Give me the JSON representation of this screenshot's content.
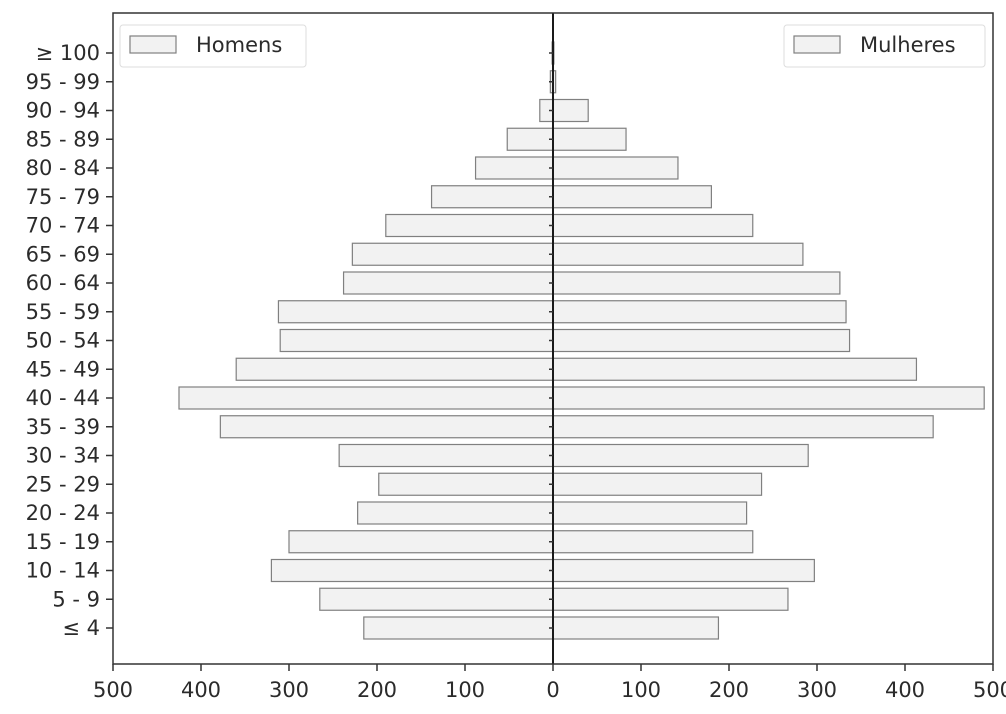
{
  "chart_data": {
    "type": "bar",
    "orientation": "horizontal",
    "categories": [
      "≤ 4",
      "5 - 9",
      "10 - 14",
      "15 - 19",
      "20 - 24",
      "25 - 29",
      "30 - 34",
      "35 - 39",
      "40 - 44",
      "45 - 49",
      "50 - 54",
      "55 - 59",
      "60 - 64",
      "65 - 69",
      "70 - 74",
      "75 - 79",
      "80 - 84",
      "85 - 89",
      "90 - 94",
      "95 - 99",
      "≥ 100"
    ],
    "series": [
      {
        "name": "Homens",
        "values": [
          215,
          265,
          320,
          300,
          222,
          198,
          243,
          378,
          425,
          360,
          310,
          312,
          238,
          228,
          190,
          138,
          88,
          52,
          15,
          3,
          1
        ]
      },
      {
        "name": "Mulheres",
        "values": [
          188,
          267,
          297,
          227,
          220,
          237,
          290,
          432,
          490,
          413,
          337,
          333,
          326,
          284,
          227,
          180,
          142,
          83,
          40,
          3,
          1
        ]
      }
    ],
    "xticks": [
      "500",
      "400",
      "300",
      "200",
      "100",
      "0",
      "100",
      "200",
      "300",
      "400",
      "500"
    ],
    "xlim": [
      -500,
      500
    ],
    "legend": {
      "left": "upper-left",
      "right": "upper-right"
    },
    "grid": false,
    "colors": {
      "bar_fill": "#f2f2f2",
      "bar_edge": "#808080",
      "axis": "#333333",
      "center_line": "#1a1a1a"
    }
  }
}
